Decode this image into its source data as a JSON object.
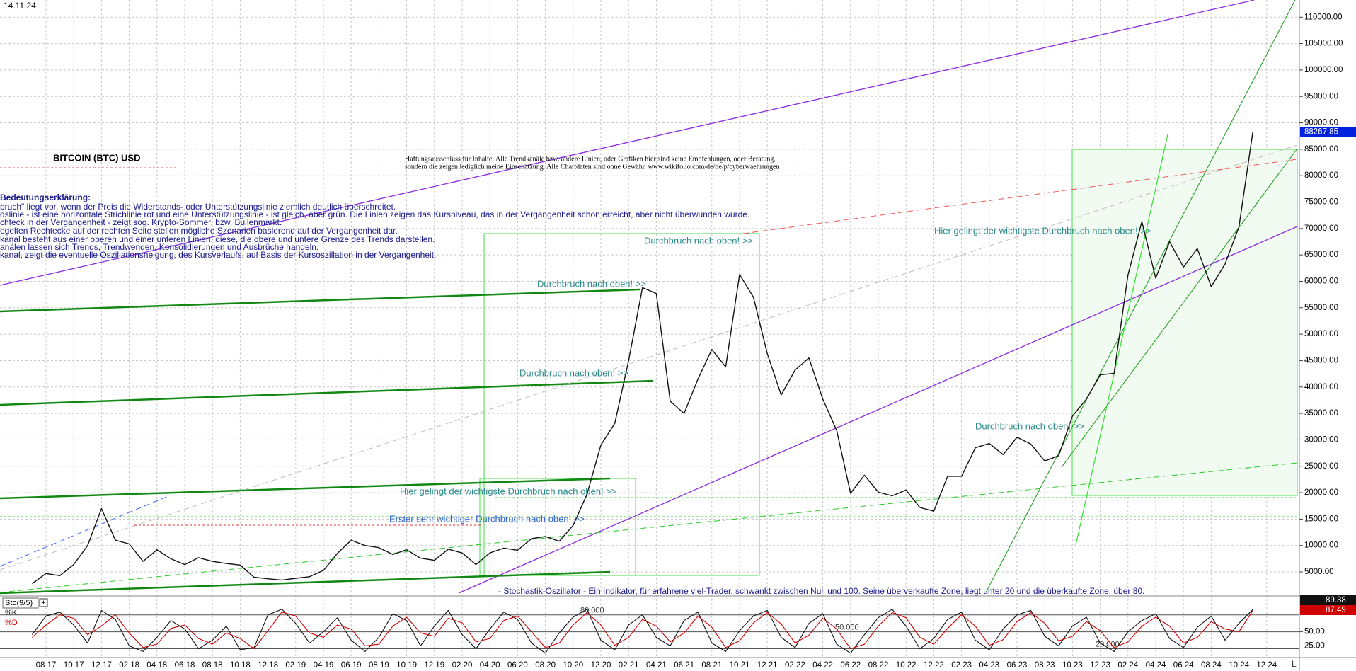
{
  "chart_data": {
    "type": "line",
    "date": "14.11.24",
    "title": "BITCOIN (BTC) USD",
    "color": "#111111",
    "categories": [
      null,
      "08 17",
      null,
      "10 17",
      null,
      "12 17",
      null,
      "02 18",
      null,
      "04 18",
      null,
      "06 18",
      null,
      "08 18",
      null,
      "10 18",
      null,
      "12 18",
      null,
      "02 19",
      null,
      "04 19",
      null,
      "06 19",
      null,
      "08 19",
      null,
      "10 19",
      null,
      "12 19",
      null,
      "02 20",
      null,
      "04 20",
      null,
      "06 20",
      null,
      "08 20",
      null,
      "10 20",
      null,
      "12 20",
      null,
      "02 21",
      null,
      "04 21",
      null,
      "06 21",
      null,
      "08 21",
      null,
      "10 21",
      null,
      "12 21",
      null,
      "02 22",
      null,
      "04 22",
      null,
      "06 22",
      null,
      "08 22",
      null,
      "10 22",
      null,
      "12 22",
      null,
      "02 23",
      null,
      "04 23",
      null,
      "06 23",
      null,
      "08 23",
      null,
      "10 23",
      null,
      "12 23",
      null,
      "02 24",
      null,
      "04 24",
      null,
      "06 24",
      null,
      "08 24",
      null,
      "10 24",
      null,
      "12 24"
    ],
    "values": [
      2800,
      4700,
      4300,
      6400,
      10000,
      17000,
      11000,
      10300,
      7000,
      9200,
      7500,
      6400,
      7700,
      7000,
      6600,
      6300,
      4000,
      3700,
      3450,
      3800,
      4100,
      5300,
      8500,
      11000,
      10000,
      9600,
      8300,
      9200,
      7600,
      7200,
      9300,
      8600,
      6400,
      8600,
      9500,
      9100,
      11300,
      11700,
      10800,
      13800,
      19700,
      29000,
      33100,
      45000,
      58800,
      57700,
      37300,
      35000,
      41500,
      47100,
      43800,
      61300,
      57000,
      46300,
      38500,
      43200,
      45500,
      37700,
      31800,
      19900,
      23300,
      20100,
      19400,
      20500,
      17200,
      16500,
      23100,
      23100,
      28500,
      29300,
      27200,
      30500,
      29200,
      26000,
      27000,
      34500,
      37700,
      42300,
      42600,
      61200,
      71300,
      60600,
      67500,
      62700,
      66200,
      59000,
      63300,
      70300,
      88267.85,
      null
    ],
    "ylim": [
      450,
      113250
    ],
    "yticks": [
      {
        "value": 5000,
        "label": "5000.00"
      },
      {
        "value": 10000,
        "label": "10000.00"
      },
      {
        "value": 15000,
        "label": "15000.00"
      },
      {
        "value": 20000,
        "label": "20000.00"
      },
      {
        "value": 25000,
        "label": "25000.00"
      },
      {
        "value": 30000,
        "label": "30000.00"
      },
      {
        "value": 35000,
        "label": "35000.00"
      },
      {
        "value": 40000,
        "label": "40000.00"
      },
      {
        "value": 45000,
        "label": "45000.00"
      },
      {
        "value": 50000,
        "label": "50000.00"
      },
      {
        "value": 55000,
        "label": "55000.00"
      },
      {
        "value": 60000,
        "label": "60000.00"
      },
      {
        "value": 65000,
        "label": "65000.00"
      },
      {
        "value": 70000,
        "label": "70000.00"
      },
      {
        "value": 75000,
        "label": "75000.00"
      },
      {
        "value": 80000,
        "label": "80000.00"
      },
      {
        "value": 85000,
        "label": "85000.00"
      },
      {
        "value": 90000,
        "label": "90000.00"
      },
      {
        "value": 95000,
        "label": "95000.00"
      },
      {
        "value": 100000,
        "label": "100000.00"
      },
      {
        "value": 105000,
        "label": "105000.00"
      },
      {
        "value": 110000,
        "label": "110000.00"
      }
    ],
    "grid": true,
    "annotations": [
      "Haftungsausschluss für Inhalte: Alle Trendkanäle bzw. andere Linien, oder Grafiken hier sind keine Empfehlungen, oder Beratung,",
      "sondern die zeigen lediglich meine  Einschätzung. Alle Chartdaten sind ohne Gewähr.  www.wikifolio.com/de/de/p/cyberwaehrungen",
      "Bedeutungserklärung:",
      "bruch\" liegt vor, wenn der Preis die Widerstands- oder Unterstützungslinie ziemlich deutlich überschreitet.",
      "dslinie - ist eine horizontale Strichlinie rot und eine Unterstützungslinie - ist gleich, aber grün. Die Linien zeigen das Kursniveau, das in der Vergangenheit schon erreicht, aber nicht überwunden wurde.",
      "chteck in der Vergangenheit - zeigt sog. Krypto-Sommer, bzw. Bullenmarkt.",
      "egelten Rechtecke auf der rechten Seite stellen mögliche Szenarien basierend auf der Vergangenheit dar.",
      "kanal besteht aus einer oberen und einer unteren Linien, diese, die obere und untere Grenze des Trends darstellen.",
      "anälen lassen sich Trends, Trendwenden, Konsolidierungen und Ausbrüche handeln.",
      "kanal, zeigt die eventuelle Oszillationsneigung, des Kursverlaufs, auf Basis der Kursoszillation in der Vergangenheit.",
      "Durchbruch nach oben! >>",
      "Durchbruch nach oben! >>",
      "Durchbruch nach oben! >>",
      "Hier gelingt der wichtigste Durchbruch nach oben! >>",
      "Hier gelingt der wichtigste Durchbruch nach oben! >>",
      "Erster sehr wichtiger Durchbruch nach oben! >>",
      "Durchbruch nach oben! >>",
      "- Stochastik-Oszillator - Ein Indikator, für erfahrene viel-Trader, schwankt zwischen Null und 100. Seine überverkaufte Zone, liegt unter 20 und die überkaufte Zone, über 80.",
      "L"
    ],
    "stochastic": {
      "title": "Sto(9/5)",
      "ylim": [
        8,
        96
      ],
      "yticks": [
        {
          "value": 25,
          "label": "25.00"
        },
        {
          "value": 50,
          "label": "50.00"
        }
      ],
      "levels": [
        {
          "value": 80,
          "label": "80.000"
        },
        {
          "value": 50,
          "label": "50.000"
        },
        {
          "value": 20,
          "label": "20.000"
        }
      ],
      "series": [
        {
          "name": "%K",
          "color": "#111111",
          "values": [
            45,
            78,
            85,
            62,
            30,
            88,
            72,
            25,
            15,
            40,
            70,
            55,
            20,
            35,
            60,
            18,
            22,
            80,
            90,
            65,
            30,
            50,
            75,
            35,
            15,
            40,
            82,
            70,
            25,
            60,
            88,
            45,
            20,
            55,
            85,
            72,
            30,
            12,
            48,
            76,
            90,
            35,
            18,
            62,
            80,
            40,
            25,
            70,
            85,
            30,
            15,
            52,
            78,
            88,
            40,
            22,
            65,
            82,
            28,
            12,
            45,
            75,
            90,
            60,
            20,
            38,
            72,
            85,
            35,
            18,
            55,
            80,
            88,
            42,
            25,
            60,
            76,
            30,
            15,
            50,
            70,
            82,
            38,
            22,
            58,
            78,
            35,
            65,
            89.38,
            null
          ]
        },
        {
          "name": "%D",
          "color": "#d00000",
          "values": [
            40,
            62,
            80,
            74,
            45,
            60,
            80,
            48,
            22,
            28,
            56,
            62,
            38,
            28,
            48,
            38,
            20,
            52,
            85,
            78,
            48,
            40,
            62,
            55,
            25,
            28,
            60,
            76,
            48,
            42,
            74,
            66,
            32,
            38,
            70,
            78,
            50,
            22,
            30,
            62,
            84,
            62,
            26,
            40,
            72,
            60,
            32,
            48,
            78,
            58,
            22,
            34,
            66,
            84,
            64,
            30,
            44,
            74,
            55,
            20,
            28,
            60,
            84,
            75,
            40,
            28,
            56,
            80,
            60,
            26,
            36,
            68,
            84,
            65,
            34,
            42,
            68,
            52,
            22,
            32,
            60,
            76,
            60,
            30,
            40,
            68,
            55,
            50,
            87.49,
            null
          ]
        }
      ]
    }
  }
}
